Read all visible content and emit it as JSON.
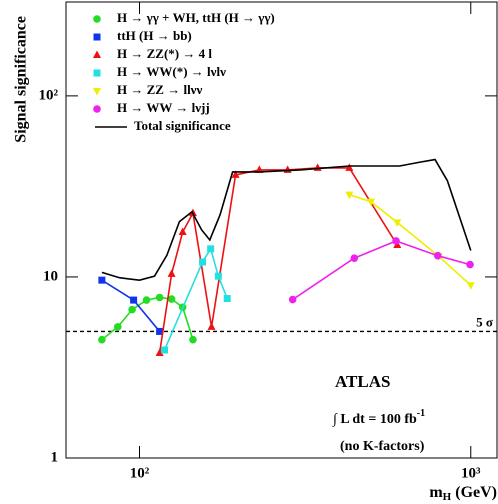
{
  "chart_data": {
    "type": "line",
    "ylabel": "Signal significance",
    "xlabel": [
      "m",
      "H",
      " (GeV)"
    ],
    "xscale": "log",
    "yscale": "log",
    "xlim": [
      60,
      1200
    ],
    "ylim": [
      1,
      330
    ],
    "xticks": [
      {
        "value": 100,
        "label": "10²"
      },
      {
        "value": 1000,
        "label": "10³"
      }
    ],
    "yticks": [
      1,
      10,
      {
        "value": 100,
        "label": "10²"
      }
    ],
    "legend": "top-left",
    "series": [
      {
        "name": "H → γγ  +  WH, ttH (H → γγ)",
        "color": "#22dd22",
        "marker": "circle",
        "x": [
          77,
          86,
          95,
          105,
          115,
          125,
          135,
          145
        ],
        "values": [
          4.5,
          5.3,
          6.6,
          7.45,
          7.7,
          7.55,
          6.8,
          4.5
        ]
      },
      {
        "name": "ttH (H → bb)",
        "color": "#1133ee",
        "marker": "square",
        "x": [
          77,
          96,
          115
        ],
        "values": [
          9.6,
          7.45,
          5.0
        ]
      },
      {
        "name": "H → ZZ(*) → 4 l",
        "color": "#ee1111",
        "marker": "triangle-up",
        "x": [
          115,
          125,
          135,
          145,
          165,
          195,
          230,
          280,
          345,
          430,
          600
        ],
        "values": [
          3.8,
          10.4,
          17.7,
          22.5,
          5.3,
          36.6,
          39,
          39,
          40,
          40,
          15
        ]
      },
      {
        "name": "H → WW(*) → lνlν",
        "color": "#22e0e0",
        "marker": "square",
        "x": [
          119,
          155,
          164,
          173,
          184
        ],
        "values": [
          3.95,
          12.1,
          14.3,
          10.1,
          7.6
        ]
      },
      {
        "name": "H → ZZ → llνν",
        "color": "#eeee00",
        "marker": "triangle-down",
        "x": [
          430,
          500,
          600,
          800,
          1000
        ],
        "values": [
          28.5,
          26,
          20,
          13,
          9
        ]
      },
      {
        "name": "H → WW → lνjj",
        "color": "#ee22ee",
        "marker": "circle",
        "x": [
          290,
          445,
          595,
          795,
          995
        ],
        "values": [
          7.5,
          12.7,
          15.8,
          13.1,
          11.7
        ]
      },
      {
        "name": "Total significance",
        "color": "#000000",
        "marker": "none",
        "x": [
          77,
          87,
          100,
          111,
          121,
          132,
          144,
          154,
          163,
          175,
          191,
          230,
          305,
          431,
          610,
          700,
          780,
          850,
          1000
        ],
        "values": [
          10.6,
          9.9,
          9.6,
          10.1,
          13.2,
          20.2,
          22.9,
          18.2,
          16,
          22,
          38,
          38,
          39,
          41,
          41,
          43,
          44.5,
          34,
          14
        ]
      }
    ],
    "reference_line": {
      "value": 5,
      "label": "5 σ"
    },
    "annotations": {
      "experiment": "ATLAS",
      "luminosity": [
        "∫ L dt = 100 fb",
        "-1"
      ],
      "note": "(no K-factors)"
    }
  }
}
